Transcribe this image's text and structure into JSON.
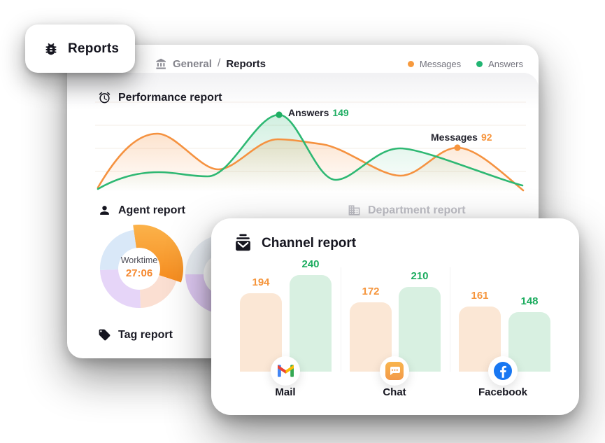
{
  "tab": {
    "label": "Reports",
    "icon": "bug-icon"
  },
  "breadcrumb": {
    "icon": "bank-icon",
    "separator": "/",
    "items": [
      {
        "label": "General"
      },
      {
        "label": "Reports"
      }
    ]
  },
  "legend": [
    {
      "label": "Messages",
      "color": "#F79A3E"
    },
    {
      "label": "Answers",
      "color": "#22B573"
    }
  ],
  "performance": {
    "title": "Performance report",
    "icon": "alarm-clock-icon",
    "annotations": {
      "answers": {
        "label": "Answers",
        "value": "149"
      },
      "messages": {
        "label": "Messages",
        "value": "92"
      }
    }
  },
  "agent": {
    "title": "Agent report",
    "icon": "person-icon",
    "center_label": "Worktime",
    "center_value": "27:06"
  },
  "department": {
    "title": "Department report",
    "icon": "building-icon"
  },
  "tag": {
    "title": "Tag report",
    "icon": "tag-icon"
  },
  "channel": {
    "title": "Channel report",
    "icon": "inbox-icon",
    "groups": [
      {
        "label": "Mail",
        "icon": "gmail-icon",
        "messages": 194,
        "answers": 240
      },
      {
        "label": "Chat",
        "icon": "chat-icon",
        "messages": 172,
        "answers": 210
      },
      {
        "label": "Facebook",
        "icon": "facebook-icon",
        "messages": 161,
        "answers": 148
      }
    ]
  },
  "chart_data": [
    {
      "type": "line",
      "title": "Performance report",
      "legend_position": "top-right",
      "axes_visible": false,
      "grid": "faint-horizontal",
      "series": [
        {
          "name": "Messages",
          "color": "#F59240",
          "values_estimated": [
            10,
            110,
            45,
            100,
            95,
            35,
            55,
            92,
            5
          ],
          "annotated_point": {
            "label": "Messages",
            "value": 92
          }
        },
        {
          "name": "Answers",
          "color": "#2EB873",
          "values_estimated": [
            5,
            38,
            30,
            149,
            25,
            85,
            40,
            12
          ],
          "annotated_point": {
            "label": "Answers",
            "value": 149
          }
        }
      ]
    },
    {
      "type": "donut",
      "title": "Agent report",
      "center_label": "Worktime",
      "center_value": "27:06",
      "segments": [
        {
          "name": "segment-orange",
          "color": "#F89B2D",
          "percent_estimated": 32
        },
        {
          "name": "segment-peach",
          "color": "#FBDFD2",
          "percent_estimated": 19
        },
        {
          "name": "segment-lavender",
          "color": "#E6D5F8",
          "percent_estimated": 25
        },
        {
          "name": "segment-blue",
          "color": "#D9E8F8",
          "percent_estimated": 24
        }
      ]
    },
    {
      "type": "bar",
      "title": "Channel report",
      "categories": [
        "Mail",
        "Chat",
        "Facebook"
      ],
      "series": [
        {
          "name": "Messages",
          "bar_color": "#FBE7D5",
          "label_color": "#F5953C",
          "values": [
            194,
            172,
            161
          ]
        },
        {
          "name": "Answers",
          "bar_color": "#D8F0E1",
          "label_color": "#1CAC5F",
          "values": [
            240,
            210,
            148
          ]
        }
      ]
    }
  ]
}
